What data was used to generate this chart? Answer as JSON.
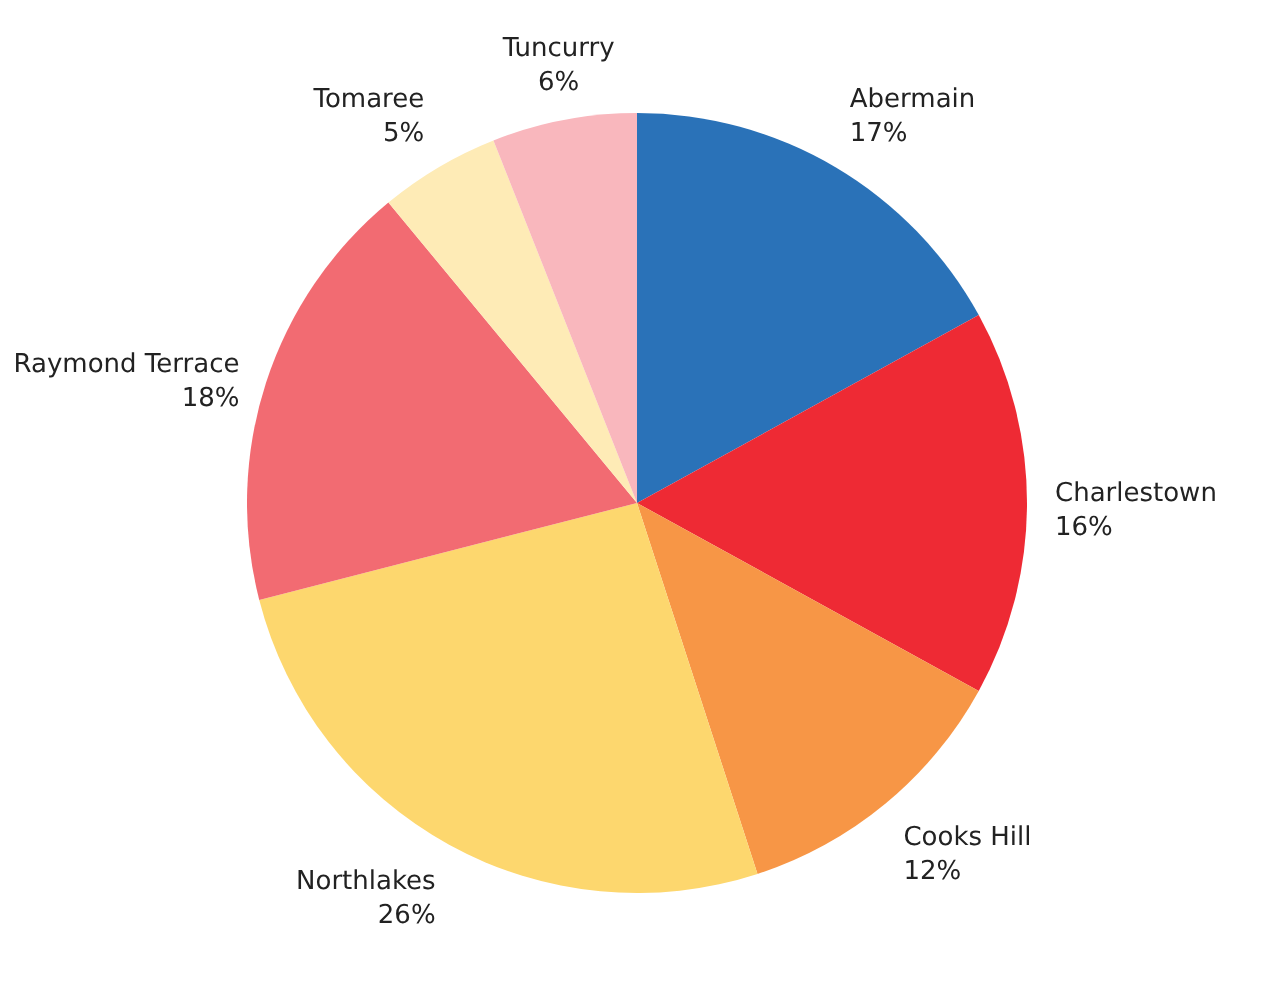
{
  "chart_data": {
    "type": "pie",
    "categories": [
      "Abermain",
      "Charlestown",
      "Cooks Hill",
      "Northlakes",
      "Raymond Terrace",
      "Tomaree",
      "Tuncurry"
    ],
    "values": [
      17,
      16,
      12,
      26,
      18,
      5,
      6
    ],
    "value_labels": [
      "17%",
      "16%",
      "12%",
      "26%",
      "18%",
      "5%",
      "6%"
    ],
    "colors": [
      "#2a72b8",
      "#ee2a34",
      "#f79646",
      "#fdd76e",
      "#f26b72",
      "#feebb6",
      "#f9b7bd"
    ],
    "legend": false
  }
}
